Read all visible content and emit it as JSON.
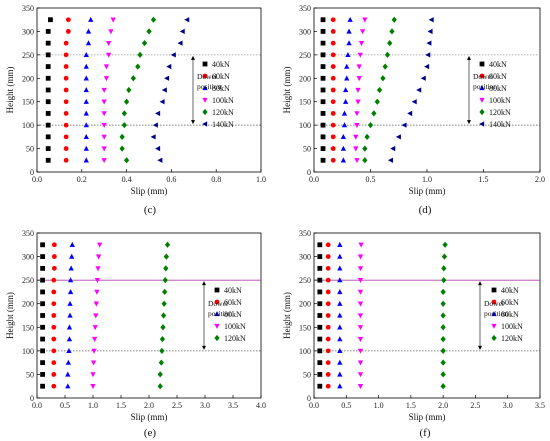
{
  "chart_data": [
    {
      "type": "scatter",
      "caption": "(c)",
      "xlabel": "Slip (mm)",
      "ylabel": "Height (mm)",
      "xlim": [
        0,
        1.0
      ],
      "ylim": [
        0,
        350
      ],
      "xticks": [
        "0.0",
        "0.2",
        "0.4",
        "0.6",
        "0.8",
        "1.0"
      ],
      "yticks": [
        "0",
        "50",
        "100",
        "150",
        "200",
        "250",
        "300",
        "350"
      ],
      "reference_lines": [
        {
          "y": 250,
          "color": "#999999",
          "style": "dotted"
        },
        {
          "y": 100,
          "color": "#555555",
          "style": "dotted"
        }
      ],
      "annotation": [
        "Dowel",
        "position"
      ],
      "heights": [
        25,
        50,
        75,
        100,
        125,
        150,
        175,
        200,
        225,
        250,
        275,
        300,
        325
      ],
      "series": [
        {
          "name": "40kN",
          "marker": "square",
          "color": "#000000",
          "values": [
            0.05,
            0.05,
            0.05,
            0.05,
            0.05,
            0.05,
            0.05,
            0.05,
            0.05,
            0.05,
            0.05,
            0.05,
            0.06
          ]
        },
        {
          "name": "60kN",
          "marker": "circle",
          "color": "#ff0000",
          "values": [
            0.13,
            0.13,
            0.13,
            0.13,
            0.13,
            0.13,
            0.13,
            0.13,
            0.13,
            0.13,
            0.13,
            0.14,
            0.14
          ]
        },
        {
          "name": "80kN",
          "marker": "triangle-up",
          "color": "#0000ff",
          "values": [
            0.22,
            0.22,
            0.22,
            0.22,
            0.22,
            0.22,
            0.22,
            0.22,
            0.22,
            0.22,
            0.23,
            0.23,
            0.24
          ]
        },
        {
          "name": "100kN",
          "marker": "triangle-down",
          "color": "#ff00ff",
          "values": [
            0.3,
            0.3,
            0.3,
            0.3,
            0.3,
            0.3,
            0.3,
            0.31,
            0.31,
            0.32,
            0.32,
            0.33,
            0.34
          ]
        },
        {
          "name": "120kN",
          "marker": "diamond",
          "color": "#008000",
          "values": [
            0.4,
            0.38,
            0.38,
            0.39,
            0.39,
            0.4,
            0.41,
            0.43,
            0.45,
            0.46,
            0.48,
            0.5,
            0.52
          ]
        },
        {
          "name": "140kN",
          "marker": "triangle-left",
          "color": "#00008b",
          "values": [
            0.55,
            0.54,
            0.52,
            0.53,
            0.54,
            0.56,
            0.57,
            0.58,
            0.59,
            0.61,
            0.64,
            0.65,
            0.67
          ]
        }
      ]
    },
    {
      "type": "scatter",
      "caption": "(d)",
      "xlabel": "Slip (mm)",
      "ylabel": "Height (mm)",
      "xlim": [
        0,
        2.0
      ],
      "ylim": [
        0,
        350
      ],
      "xticks": [
        "0.0",
        "0.5",
        "1.0",
        "1.5",
        "2.0"
      ],
      "yticks": [
        "0",
        "50",
        "100",
        "150",
        "200",
        "250",
        "300",
        "350"
      ],
      "reference_lines": [
        {
          "y": 250,
          "color": "#999999",
          "style": "dotted"
        },
        {
          "y": 100,
          "color": "#555555",
          "style": "dotted"
        }
      ],
      "annotation": [
        "Dowel",
        "position"
      ],
      "heights": [
        25,
        50,
        75,
        100,
        125,
        150,
        175,
        200,
        225,
        250,
        275,
        300,
        325
      ],
      "series": [
        {
          "name": "40kN",
          "marker": "square",
          "color": "#000000",
          "values": [
            0.08,
            0.08,
            0.08,
            0.08,
            0.08,
            0.08,
            0.08,
            0.08,
            0.08,
            0.08,
            0.08,
            0.08,
            0.08
          ]
        },
        {
          "name": "60kN",
          "marker": "circle",
          "color": "#ff0000",
          "values": [
            0.17,
            0.17,
            0.17,
            0.17,
            0.17,
            0.17,
            0.17,
            0.17,
            0.17,
            0.17,
            0.17,
            0.17,
            0.17
          ]
        },
        {
          "name": "80kN",
          "marker": "triangle-up",
          "color": "#0000ff",
          "values": [
            0.26,
            0.26,
            0.26,
            0.27,
            0.27,
            0.28,
            0.28,
            0.29,
            0.29,
            0.3,
            0.31,
            0.31,
            0.32
          ]
        },
        {
          "name": "100kN",
          "marker": "triangle-down",
          "color": "#ff00ff",
          "values": [
            0.38,
            0.37,
            0.37,
            0.38,
            0.38,
            0.39,
            0.39,
            0.4,
            0.4,
            0.41,
            0.42,
            0.43,
            0.45
          ]
        },
        {
          "name": "120kN",
          "marker": "diamond",
          "color": "#008000",
          "values": [
            0.45,
            0.45,
            0.47,
            0.5,
            0.53,
            0.56,
            0.58,
            0.61,
            0.63,
            0.65,
            0.67,
            0.69,
            0.71
          ]
        },
        {
          "name": "140kN",
          "marker": "triangle-left",
          "color": "#00008b",
          "values": [
            0.68,
            0.7,
            0.75,
            0.8,
            0.85,
            0.89,
            0.93,
            0.97,
            1.0,
            1.01,
            1.02,
            1.03,
            1.04
          ]
        }
      ]
    },
    {
      "type": "scatter",
      "caption": "(e)",
      "xlabel": "Slip (mm)",
      "ylabel": "Height (mm)",
      "xlim": [
        0,
        4.0
      ],
      "ylim": [
        0,
        350
      ],
      "xticks": [
        "0.0",
        "0.5",
        "1.0",
        "1.5",
        "2.0",
        "2.5",
        "3.0",
        "3.5",
        "4.0"
      ],
      "yticks": [
        "0",
        "50",
        "100",
        "150",
        "200",
        "250",
        "300",
        "350"
      ],
      "reference_lines": [
        {
          "y": 250,
          "color": "#b040b0",
          "style": "solid"
        },
        {
          "y": 100,
          "color": "#555555",
          "style": "dotted"
        }
      ],
      "annotation": [
        "Dowel",
        "position"
      ],
      "heights": [
        25,
        50,
        75,
        100,
        125,
        150,
        175,
        200,
        225,
        250,
        275,
        300,
        325
      ],
      "series": [
        {
          "name": "40kN",
          "marker": "square",
          "color": "#000000",
          "values": [
            0.1,
            0.1,
            0.1,
            0.1,
            0.1,
            0.1,
            0.1,
            0.1,
            0.1,
            0.1,
            0.1,
            0.1,
            0.1
          ]
        },
        {
          "name": "60kN",
          "marker": "circle",
          "color": "#ff0000",
          "values": [
            0.3,
            0.3,
            0.3,
            0.3,
            0.3,
            0.3,
            0.3,
            0.3,
            0.3,
            0.3,
            0.31,
            0.31,
            0.31
          ]
        },
        {
          "name": "80kN",
          "marker": "triangle-up",
          "color": "#0000ff",
          "values": [
            0.55,
            0.55,
            0.56,
            0.57,
            0.58,
            0.58,
            0.59,
            0.59,
            0.6,
            0.6,
            0.61,
            0.62,
            0.63
          ]
        },
        {
          "name": "100kN",
          "marker": "triangle-down",
          "color": "#ff00ff",
          "values": [
            1.0,
            1.0,
            1.01,
            1.02,
            1.03,
            1.04,
            1.05,
            1.06,
            1.07,
            1.08,
            1.09,
            1.1,
            1.12
          ]
        },
        {
          "name": "120kN",
          "marker": "diamond",
          "color": "#008000",
          "values": [
            2.2,
            2.2,
            2.22,
            2.23,
            2.24,
            2.25,
            2.26,
            2.27,
            2.28,
            2.29,
            2.3,
            2.31,
            2.33
          ]
        }
      ]
    },
    {
      "type": "scatter",
      "caption": "(f)",
      "xlabel": "Slip (mm)",
      "ylabel": "Height (mm)",
      "xlim": [
        0,
        3.5
      ],
      "ylim": [
        0,
        350
      ],
      "xticks": [
        "0.0",
        "0.5",
        "1.0",
        "1.5",
        "2.0",
        "2.5",
        "3.0",
        "3.5"
      ],
      "yticks": [
        "0",
        "50",
        "100",
        "150",
        "200",
        "250",
        "300",
        "350"
      ],
      "reference_lines": [
        {
          "y": 250,
          "color": "#b040b0",
          "style": "solid"
        },
        {
          "y": 100,
          "color": "#555555",
          "style": "dotted"
        }
      ],
      "annotation": [
        "Dowel",
        "position"
      ],
      "heights": [
        25,
        50,
        75,
        100,
        125,
        150,
        175,
        200,
        225,
        250,
        275,
        300,
        325
      ],
      "series": [
        {
          "name": "40kN",
          "marker": "square",
          "color": "#000000",
          "values": [
            0.09,
            0.09,
            0.09,
            0.09,
            0.09,
            0.09,
            0.09,
            0.09,
            0.09,
            0.09,
            0.09,
            0.09,
            0.09
          ]
        },
        {
          "name": "60kN",
          "marker": "circle",
          "color": "#ff0000",
          "values": [
            0.22,
            0.22,
            0.22,
            0.22,
            0.22,
            0.22,
            0.22,
            0.22,
            0.22,
            0.22,
            0.22,
            0.22,
            0.22
          ]
        },
        {
          "name": "80kN",
          "marker": "triangle-up",
          "color": "#0000ff",
          "values": [
            0.4,
            0.4,
            0.4,
            0.4,
            0.4,
            0.4,
            0.4,
            0.4,
            0.4,
            0.4,
            0.4,
            0.4,
            0.4
          ]
        },
        {
          "name": "100kN",
          "marker": "triangle-down",
          "color": "#ff00ff",
          "values": [
            0.72,
            0.72,
            0.72,
            0.72,
            0.72,
            0.72,
            0.72,
            0.72,
            0.72,
            0.72,
            0.72,
            0.72,
            0.73
          ]
        },
        {
          "name": "120kN",
          "marker": "diamond",
          "color": "#008000",
          "values": [
            2.0,
            2.0,
            2.0,
            2.0,
            2.0,
            2.0,
            2.0,
            2.0,
            2.0,
            2.01,
            2.01,
            2.02,
            2.03
          ]
        }
      ]
    }
  ]
}
